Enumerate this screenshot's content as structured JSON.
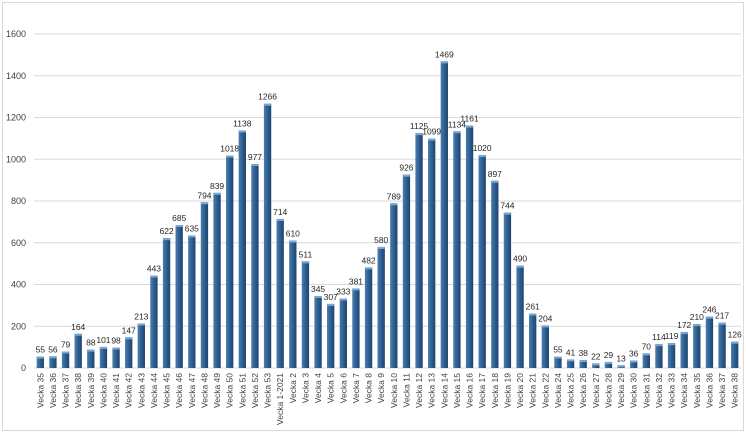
{
  "chart_data": {
    "type": "bar",
    "title": "",
    "xlabel": "",
    "ylabel": "",
    "ylim": [
      0,
      1600
    ],
    "yticks": [
      0,
      200,
      400,
      600,
      800,
      1000,
      1200,
      1400,
      1600
    ],
    "grid": true,
    "legend": "none",
    "bar_color": "#2e5f8f",
    "categories": [
      "Vecka 35",
      "Vecka 36",
      "Vecka 37",
      "Vecka 38",
      "Vecka 39",
      "Vecka 40",
      "Vecka 41",
      "Vecka 42",
      "Vecka 43",
      "Vecka 44",
      "Vecka 45",
      "Vecka 46",
      "Vecka 47",
      "Vecka 48",
      "Vecka 49",
      "Vecka 50",
      "Vecka 51",
      "Vecka 52",
      "Vecka 53",
      "Vecka 1-2021",
      "Vecka 2",
      "Vecka 3",
      "Vecka 4",
      "Vecka 5",
      "Vecka 6",
      "Vecka 7",
      "Vecka 8",
      "Vecka 9",
      "Vecka 10",
      "Vecka 11",
      "Vecka 12",
      "Vecka 13",
      "Vecka 14",
      "Vecka 15",
      "Vecka 16",
      "Vecka 17",
      "Vecka 18",
      "Vecka 19",
      "Vecka 20",
      "Vecka 21",
      "Vecka 22",
      "Vecka 24",
      "Vecka 25",
      "Vecka 26",
      "Vecka 27",
      "Vecka 28",
      "Vecka 29",
      "Vecka 30",
      "Vecka 31",
      "Vecka 32",
      "Vecka 33",
      "Vecka 34",
      "Vecka 35",
      "Vecka 36",
      "Vecka 37",
      "Vecka 38"
    ],
    "values": [
      55,
      56,
      79,
      164,
      88,
      101,
      98,
      147,
      213,
      443,
      622,
      685,
      635,
      794,
      839,
      1018,
      1138,
      977,
      1266,
      714,
      610,
      511,
      345,
      307,
      333,
      381,
      482,
      580,
      789,
      926,
      1125,
      1099,
      1469,
      1134,
      1161,
      1020,
      897,
      744,
      490,
      261,
      204,
      55,
      41,
      38,
      22,
      29,
      13,
      36,
      70,
      114,
      119,
      172,
      210,
      246,
      217,
      126
    ]
  }
}
